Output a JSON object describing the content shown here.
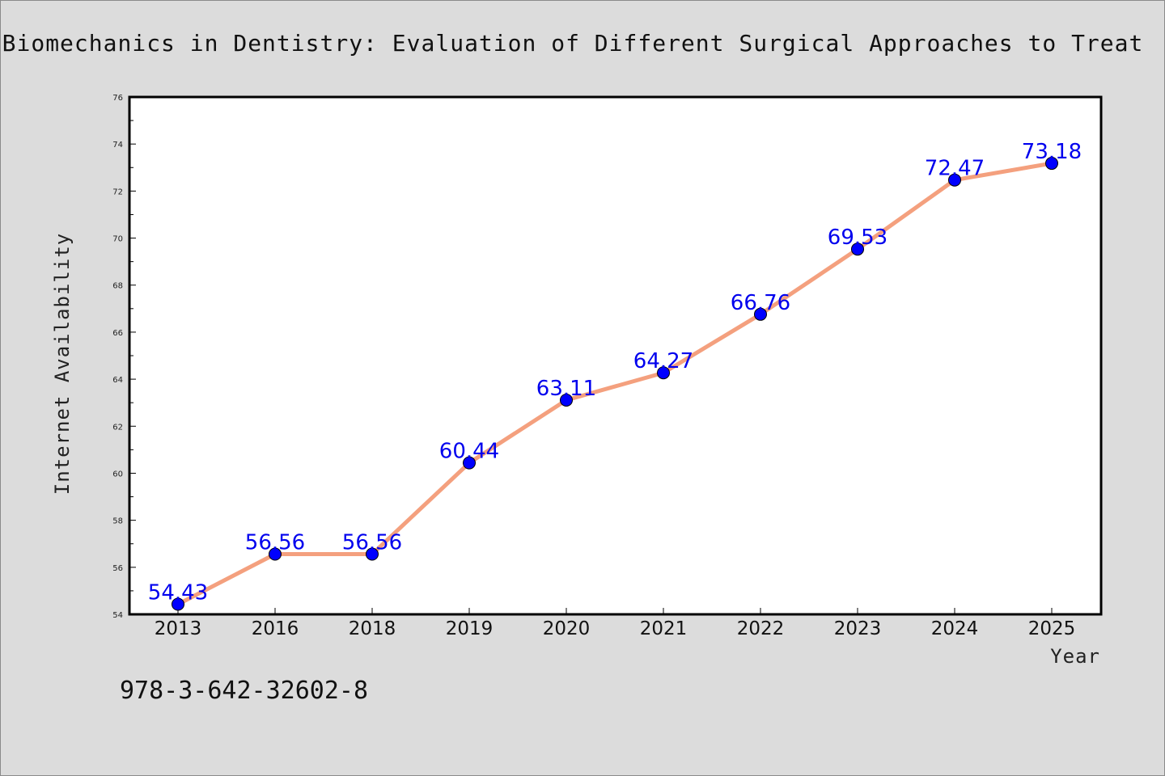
{
  "chart_data": {
    "type": "line",
    "title": "Biomechanics in Dentistry: Evaluation of Different Surgical Approaches to Treat",
    "xlabel": "Year",
    "ylabel": "Internet Availability",
    "categories": [
      "2013",
      "2016",
      "2018",
      "2019",
      "2020",
      "2021",
      "2022",
      "2023",
      "2024",
      "2025"
    ],
    "series": [
      {
        "values": [
          54.43,
          56.56,
          56.56,
          60.44,
          63.11,
          64.27,
          66.76,
          69.53,
          72.47,
          73.18
        ],
        "labels": [
          "54.43",
          "56.56",
          "56.56",
          "60.44",
          "63.11",
          "64.27",
          "66.76",
          "69.53",
          "72.47",
          "73.18"
        ]
      }
    ],
    "ylim": [
      54,
      76
    ],
    "yticks": [
      "54",
      "56",
      "58",
      "60",
      "62",
      "64",
      "66",
      "68",
      "70",
      "72",
      "74",
      "76"
    ],
    "grid": false,
    "legend": "none",
    "colors": {
      "line": "#f4a07e",
      "marker": "#0000ff",
      "label": "#0000ee",
      "background": "#dcdcdc"
    }
  },
  "footer": {
    "isbn": "978-3-642-32602-8"
  }
}
